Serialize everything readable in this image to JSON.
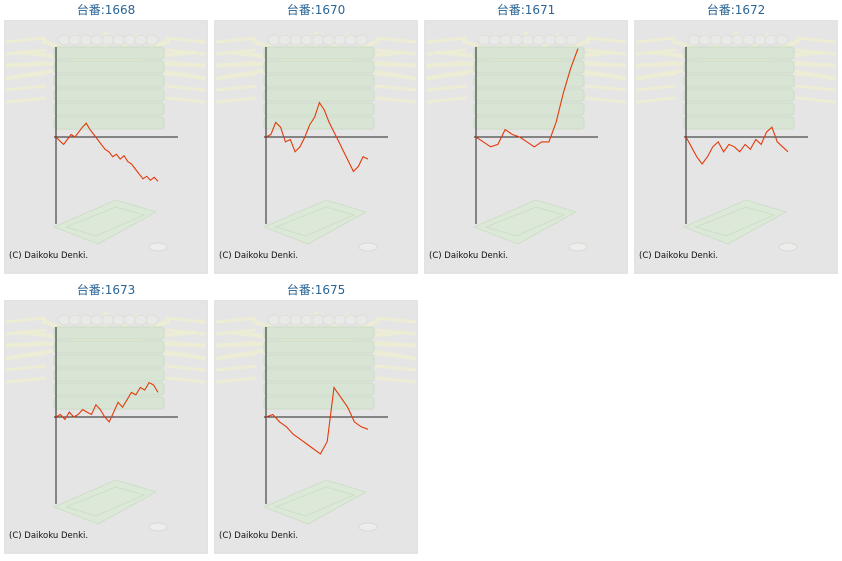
{
  "charts_meta": {
    "copyright": "(C) Daikoku Denki."
  },
  "chart_data": [
    {
      "type": "line",
      "title": "台番:1668",
      "values": [
        0,
        -8,
        -15,
        -5,
        5,
        0,
        10,
        20,
        28,
        15,
        5,
        -5,
        -15,
        -25,
        -30,
        -40,
        -35,
        -45,
        -38,
        -50,
        -55,
        -65,
        -75,
        -85,
        -80,
        -88,
        -82,
        -90
      ]
    },
    {
      "type": "line",
      "title": "台番:1670",
      "values": [
        0,
        5,
        30,
        20,
        -10,
        -5,
        -30,
        -20,
        0,
        25,
        40,
        70,
        55,
        30,
        10,
        -10,
        -30,
        -50,
        -70,
        -60,
        -40,
        -45
      ]
    },
    {
      "type": "line",
      "title": "台番:1671",
      "values": [
        0,
        -10,
        -20,
        -15,
        15,
        5,
        0,
        -10,
        -20,
        -10,
        -10,
        30,
        90,
        140,
        180
      ]
    },
    {
      "type": "line",
      "title": "台番:1672",
      "values": [
        0,
        -20,
        -40,
        -55,
        -40,
        -20,
        -10,
        -30,
        -15,
        -20,
        -30,
        -15,
        -25,
        -5,
        -15,
        10,
        20,
        -10,
        -20,
        -30
      ]
    },
    {
      "type": "line",
      "title": "台番:1673",
      "values": [
        0,
        5,
        -5,
        10,
        0,
        5,
        15,
        10,
        5,
        25,
        15,
        0,
        -10,
        10,
        30,
        20,
        35,
        50,
        45,
        60,
        55,
        70,
        65,
        50
      ]
    },
    {
      "type": "line",
      "title": "台番:1675",
      "values": [
        0,
        5,
        -10,
        -20,
        -35,
        -45,
        -55,
        -65,
        -75,
        -50,
        60,
        40,
        20,
        -10,
        -20,
        -25
      ]
    }
  ]
}
